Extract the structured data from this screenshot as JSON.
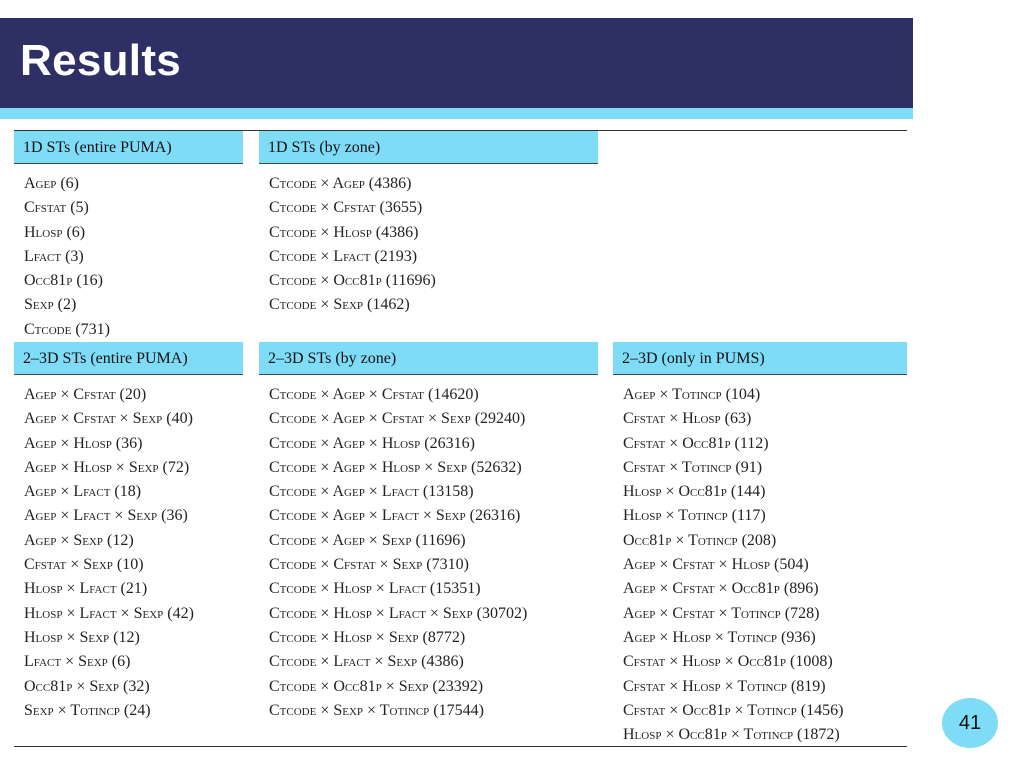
{
  "slide": {
    "title": "Results",
    "page_number": "41"
  },
  "panels": [
    {
      "header": "1D STs (entire PUMA)",
      "items": [
        "Agep (6)",
        "Cfstat (5)",
        "Hlosp (6)",
        "Lfact (3)",
        "Occ81p (16)",
        "Sexp (2)",
        "Ctcode (731)"
      ]
    },
    {
      "header": "1D STs (by zone)",
      "items": [
        "Ctcode × Agep (4386)",
        "Ctcode × Cfstat (3655)",
        "Ctcode × Hlosp (4386)",
        "Ctcode × Lfact (2193)",
        "Ctcode × Occ81p (11696)",
        "Ctcode × Sexp (1462)"
      ]
    },
    {
      "header": "2–3D STs (entire PUMA)",
      "items": [
        "Agep × Cfstat (20)",
        "Agep × Cfstat × Sexp (40)",
        "Agep × Hlosp (36)",
        "Agep × Hlosp × Sexp (72)",
        "Agep × Lfact (18)",
        "Agep × Lfact × Sexp (36)",
        "Agep × Sexp (12)",
        "Cfstat × Sexp (10)",
        "Hlosp × Lfact (21)",
        "Hlosp × Lfact × Sexp (42)",
        "Hlosp × Sexp (12)",
        "Lfact × Sexp (6)",
        "Occ81p × Sexp (32)",
        "Sexp × Totincp (24)"
      ]
    },
    {
      "header": "2–3D STs (by zone)",
      "items": [
        "Ctcode × Agep × Cfstat (14620)",
        "Ctcode × Agep × Cfstat × Sexp (29240)",
        "Ctcode × Agep × Hlosp (26316)",
        "Ctcode × Agep × Hlosp × Sexp (52632)",
        "Ctcode × Agep × Lfact (13158)",
        "Ctcode × Agep × Lfact × Sexp (26316)",
        "Ctcode × Agep × Sexp (11696)",
        "Ctcode × Cfstat × Sexp (7310)",
        "Ctcode × Hlosp × Lfact (15351)",
        "Ctcode × Hlosp × Lfact × Sexp (30702)",
        "Ctcode × Hlosp × Sexp (8772)",
        "Ctcode × Lfact × Sexp (4386)",
        "Ctcode × Occ81p × Sexp (23392)",
        "Ctcode × Sexp × Totincp (17544)"
      ]
    },
    {
      "header": "2–3D (only in PUMS)",
      "items": [
        "Agep × Totincp (104)",
        "Cfstat × Hlosp (63)",
        "Cfstat × Occ81p (112)",
        "Cfstat × Totincp (91)",
        "Hlosp × Occ81p (144)",
        "Hlosp × Totincp (117)",
        "Occ81p × Totincp (208)",
        "Agep × Cfstat × Hlosp (504)",
        "Agep × Cfstat × Occ81p (896)",
        "Agep × Cfstat × Totincp (728)",
        "Agep × Hlosp × Totincp (936)",
        "Cfstat × Hlosp × Occ81p (1008)",
        "Cfstat × Hlosp × Totincp (819)",
        "Cfstat × Occ81p × Totincp (1456)",
        "Hlosp × Occ81p × Totincp (1872)"
      ]
    }
  ]
}
